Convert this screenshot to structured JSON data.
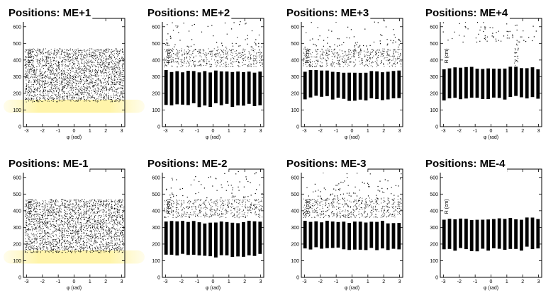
{
  "colors": {
    "marker": "#000000",
    "frame": "#000000",
    "highlight": "#fff3a0"
  },
  "chart_data": [
    {
      "type": "scatter",
      "title": "Positions: ME+1",
      "xlabel": "φ (rad)",
      "ylabel": "R (cm)",
      "xlim": [
        -3.2,
        3.2
      ],
      "ylim": [
        0,
        650
      ],
      "x_ticks": [
        "-3",
        "-2",
        "-1",
        "0",
        "1",
        "2",
        "3"
      ],
      "y_ticks": [
        "0",
        "100",
        "200",
        "300",
        "400",
        "500",
        "600"
      ],
      "n_chambers": 36,
      "rings": [
        {
          "r_min": 150,
          "r_max": 270,
          "fill": "dense"
        },
        {
          "r_min": 270,
          "r_max": 470,
          "fill": "dense"
        }
      ],
      "outliers": false,
      "highlight_band": [
        100,
        145
      ]
    },
    {
      "type": "scatter",
      "title": "Positions: ME+2",
      "xlabel": "φ (rad)",
      "ylabel": "R (cm)",
      "xlim": [
        -3.2,
        3.2
      ],
      "ylim": [
        0,
        650
      ],
      "x_ticks": [
        "-3",
        "-2",
        "-1",
        "0",
        "1",
        "2",
        "3"
      ],
      "y_ticks": [
        "0",
        "100",
        "200",
        "300",
        "400",
        "500",
        "600"
      ],
      "n_chambers": 18,
      "rings": [
        {
          "r_min": 130,
          "r_max": 340,
          "fill": "solid"
        },
        {
          "r_min": 360,
          "r_max": 470,
          "fill": "dense"
        }
      ],
      "outliers": true
    },
    {
      "type": "scatter",
      "title": "Positions: ME+3",
      "xlabel": "φ (rad)",
      "ylabel": "R (cm)",
      "xlim": [
        -3.2,
        3.2
      ],
      "ylim": [
        0,
        650
      ],
      "x_ticks": [
        "-3",
        "-2",
        "-1",
        "0",
        "1",
        "2",
        "3"
      ],
      "y_ticks": [
        "0",
        "100",
        "200",
        "300",
        "400",
        "500",
        "600"
      ],
      "n_chambers": 18,
      "rings": [
        {
          "r_min": 170,
          "r_max": 340,
          "fill": "solid"
        },
        {
          "r_min": 360,
          "r_max": 470,
          "fill": "dense"
        }
      ],
      "outliers": true
    },
    {
      "type": "scatter",
      "title": "Positions: ME+4",
      "xlabel": "φ (rad)",
      "ylabel": "R (cm)",
      "xlim": [
        -3.2,
        3.2
      ],
      "ylim": [
        0,
        650
      ],
      "x_ticks": [
        "-3",
        "-2",
        "-1",
        "0",
        "1",
        "2",
        "3"
      ],
      "y_ticks": [
        "0",
        "100",
        "200",
        "300",
        "400",
        "500",
        "600"
      ],
      "n_chambers": 18,
      "rings": [
        {
          "r_min": 170,
          "r_max": 360,
          "fill": "solid"
        },
        {
          "r_min": 370,
          "r_max": 500,
          "fill": "dense",
          "phi_range": [
            1.5,
            1.9
          ]
        }
      ],
      "outliers": true
    },
    {
      "type": "scatter",
      "title": "Positions: ME-1",
      "xlabel": "φ (rad)",
      "ylabel": "R (cm)",
      "xlim": [
        -3.2,
        3.2
      ],
      "ylim": [
        0,
        650
      ],
      "x_ticks": [
        "-3",
        "-2",
        "-1",
        "0",
        "1",
        "2",
        "3"
      ],
      "y_ticks": [
        "0",
        "100",
        "200",
        "300",
        "400",
        "500",
        "600"
      ],
      "n_chambers": 36,
      "rings": [
        {
          "r_min": 150,
          "r_max": 270,
          "fill": "dense"
        },
        {
          "r_min": 270,
          "r_max": 470,
          "fill": "dense"
        }
      ],
      "outliers": false,
      "highlight_band": [
        100,
        145
      ]
    },
    {
      "type": "scatter",
      "title": "Positions: ME-2",
      "xlabel": "φ (rad)",
      "ylabel": "R (cm)",
      "xlim": [
        -3.2,
        3.2
      ],
      "ylim": [
        0,
        650
      ],
      "x_ticks": [
        "-3",
        "-2",
        "-1",
        "0",
        "1",
        "2",
        "3"
      ],
      "y_ticks": [
        "0",
        "100",
        "200",
        "300",
        "400",
        "500",
        "600"
      ],
      "n_chambers": 18,
      "rings": [
        {
          "r_min": 130,
          "r_max": 340,
          "fill": "solid"
        },
        {
          "r_min": 360,
          "r_max": 470,
          "fill": "dense"
        }
      ],
      "outliers": true
    },
    {
      "type": "scatter",
      "title": "Positions: ME-3",
      "xlabel": "φ (rad)",
      "ylabel": "R (cm)",
      "xlim": [
        -3.2,
        3.2
      ],
      "ylim": [
        0,
        650
      ],
      "x_ticks": [
        "-3",
        "-2",
        "-1",
        "0",
        "1",
        "2",
        "3"
      ],
      "y_ticks": [
        "0",
        "100",
        "200",
        "300",
        "400",
        "500",
        "600"
      ],
      "n_chambers": 18,
      "rings": [
        {
          "r_min": 170,
          "r_max": 340,
          "fill": "solid"
        },
        {
          "r_min": 360,
          "r_max": 480,
          "fill": "dense"
        }
      ],
      "outliers": true
    },
    {
      "type": "scatter",
      "title": "Positions: ME-4",
      "xlabel": "φ (rad)",
      "ylabel": "R (cm)",
      "xlim": [
        -3.2,
        3.2
      ],
      "ylim": [
        0,
        650
      ],
      "x_ticks": [
        "-3",
        "-2",
        "-1",
        "0",
        "1",
        "2",
        "3"
      ],
      "y_ticks": [
        "0",
        "100",
        "200",
        "300",
        "400",
        "500",
        "600"
      ],
      "n_chambers": 18,
      "rings": [
        {
          "r_min": 170,
          "r_max": 360,
          "fill": "solid"
        }
      ],
      "outliers": false
    }
  ]
}
